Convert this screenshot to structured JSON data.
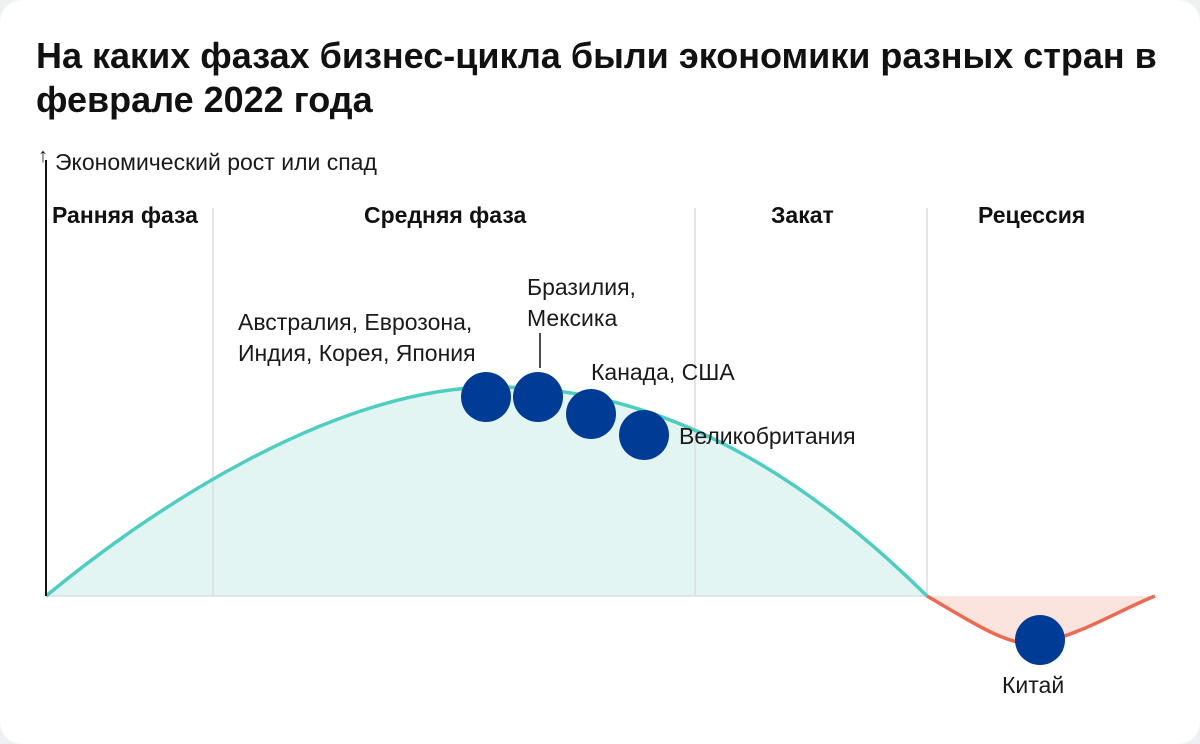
{
  "title": "На каких фазах бизнес-цикла были экономики разных стран в феврале 2022 года",
  "y_axis_label": "Экономический рост или спад",
  "phases": [
    {
      "label": "Ранняя фаза"
    },
    {
      "label": "Средняя фаза"
    },
    {
      "label": "Закат"
    },
    {
      "label": "Рецессия"
    }
  ],
  "countries": [
    {
      "lines": [
        "Австралия, Еврозона,",
        "Индия, Корея, Япония"
      ],
      "phase": "Средняя фаза"
    },
    {
      "lines": [
        "Бразилия,",
        "Мексика"
      ],
      "phase": "Средняя фаза"
    },
    {
      "lines": [
        "Канада, США"
      ],
      "phase": "Средняя фаза"
    },
    {
      "lines": [
        "Великобритания"
      ],
      "phase": "Средняя фаза"
    },
    {
      "lines": [
        "Китай"
      ],
      "phase": "Рецессия"
    }
  ],
  "colors": {
    "growth_line": "#4fcdc1",
    "growth_fill": "#e2f5f2",
    "recession_line": "#ea6a52",
    "recession_fill": "#fbe3de",
    "marker": "#003c96",
    "phase_divider": "#d9dde2",
    "axis": "#111111"
  }
}
